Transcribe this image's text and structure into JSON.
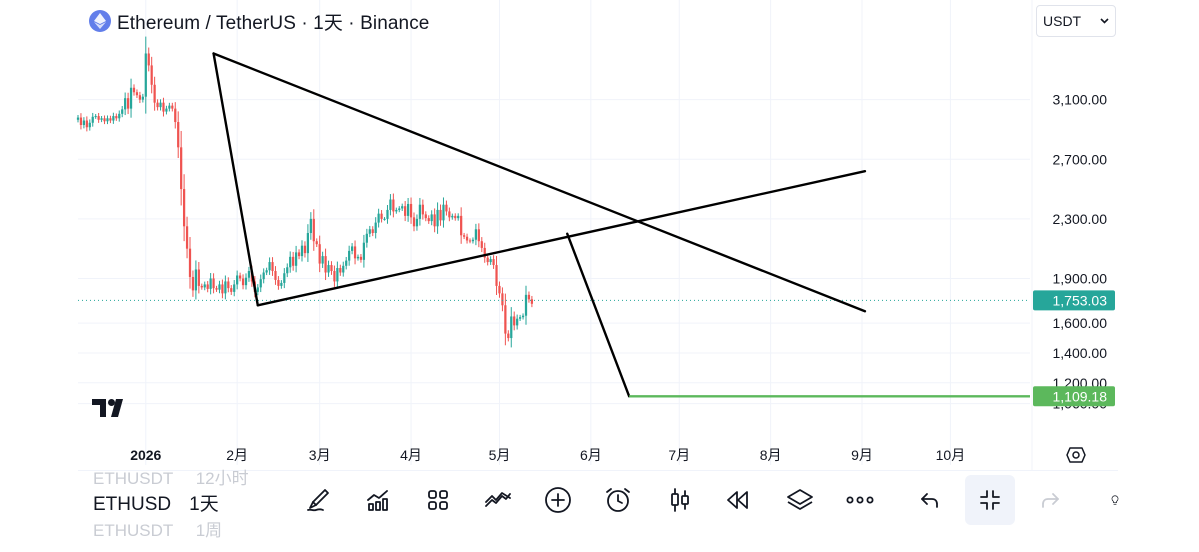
{
  "header": {
    "title": "Ethereum / TetherUS · 1天 · Binance",
    "coin_icon": "ethereum-icon",
    "currency": "USDT",
    "currency_chevron": "chevron-down-icon"
  },
  "symbol_switcher": {
    "prev_symbol": "ETHUSDT",
    "prev_interval": "12小时",
    "current_symbol": "ETHUSD",
    "current_interval": "1天",
    "next_symbol": "ETHUSDT",
    "next_interval": "1周"
  },
  "toolbar": [
    {
      "name": "draw-tool-button",
      "icon": "brush-icon"
    },
    {
      "name": "indicators-button",
      "icon": "indicators-icon"
    },
    {
      "name": "templates-button",
      "icon": "grid-icon"
    },
    {
      "name": "compare-button",
      "icon": "compare-icon"
    },
    {
      "name": "add-button",
      "icon": "plus-circle-icon"
    },
    {
      "name": "alert-button",
      "icon": "alarm-clock-icon"
    },
    {
      "name": "chart-type-button",
      "icon": "candles-icon"
    },
    {
      "name": "replay-button",
      "icon": "rewind-icon"
    },
    {
      "name": "layers-button",
      "icon": "layers-icon"
    },
    {
      "name": "more-button",
      "icon": "ellipsis-icon"
    },
    {
      "name": "undo-button",
      "icon": "undo-icon"
    },
    {
      "name": "collapse-button",
      "icon": "collapse-icon"
    },
    {
      "name": "redo-button",
      "icon": "redo-icon"
    },
    {
      "name": "ideas-button",
      "icon": "lightbulb-icon"
    }
  ],
  "chart_data": {
    "type": "candlestick",
    "x_type": "date",
    "ylim": [
      950,
      3420
    ],
    "y_ticks": [
      {
        "value": 3100,
        "label": "3,100.00"
      },
      {
        "value": 2700,
        "label": "2,700.00"
      },
      {
        "value": 2300,
        "label": "2,300.00"
      },
      {
        "value": 1900,
        "label": "1,900.00"
      },
      {
        "value": 1600,
        "label": "1,600.00"
      },
      {
        "value": 1400,
        "label": "1,400.00"
      },
      {
        "value": 1200,
        "label": "1,200.00"
      },
      {
        "value": 1060,
        "label": "1,060.00"
      }
    ],
    "x_ticks": [
      {
        "date": "2026-01-01",
        "label": "2026",
        "bold": true
      },
      {
        "date": "2026-02-01",
        "label": "2月"
      },
      {
        "date": "2026-03-01",
        "label": "3月"
      },
      {
        "date": "2026-04-01",
        "label": "4月"
      },
      {
        "date": "2026-05-01",
        "label": "5月"
      },
      {
        "date": "2026-06-01",
        "label": "6月"
      },
      {
        "date": "2026-07-01",
        "label": "7月"
      },
      {
        "date": "2026-08-01",
        "label": "8月"
      },
      {
        "date": "2026-09-01",
        "label": "9月"
      },
      {
        "date": "2026-10-01",
        "label": "10月"
      }
    ],
    "x_range": [
      "2025-12-09",
      "2026-10-28"
    ],
    "candle_start": "2025-12-09",
    "closes": [
      2980,
      2930,
      2960,
      2915,
      2945,
      2985,
      2990,
      2965,
      2975,
      2955,
      2975,
      2960,
      2990,
      2975,
      3005,
      3035,
      3110,
      3040,
      3180,
      3150,
      3130,
      3100,
      3120,
      3410,
      3330,
      3200,
      3080,
      3050,
      3080,
      3020,
      3040,
      3060,
      3040,
      2950,
      2780,
      2500,
      2250,
      2100,
      1910,
      1820,
      1960,
      1850,
      1840,
      1860,
      1830,
      1900,
      1835,
      1825,
      1860,
      1800,
      1880,
      1835,
      1810,
      1860,
      1920,
      1900,
      1855,
      1905,
      1950,
      1880,
      1810,
      1840,
      1895,
      1940,
      1955,
      2010,
      1950,
      1890,
      1850,
      1870,
      1935,
      1975,
      2045,
      1985,
      2075,
      2050,
      2120,
      2070,
      2205,
      2300,
      2150,
      2130,
      2000,
      2050,
      1940,
      1990,
      1950,
      1880,
      1970,
      1940,
      1985,
      2020,
      2085,
      2115,
      2035,
      2045,
      2025,
      2140,
      2200,
      2230,
      2205,
      2275,
      2335,
      2300,
      2300,
      2360,
      2430,
      2350,
      2360,
      2370,
      2385,
      2320,
      2400,
      2310,
      2250,
      2300,
      2395,
      2330,
      2305,
      2285,
      2330,
      2250,
      2360,
      2290,
      2395,
      2350,
      2310,
      2320,
      2305,
      2320,
      2190,
      2180,
      2155,
      2150,
      2160,
      2230,
      2150,
      2105,
      2040,
      2010,
      2030,
      1990,
      1850,
      1800,
      1720,
      1530,
      1500,
      1645,
      1585,
      1630,
      1640,
      1650,
      1790,
      1760,
      1730
    ],
    "candle_up_color": "#26a69a",
    "candle_down_color": "#ef5350",
    "last_price": {
      "value": 1753.03,
      "label": "1,753.03",
      "color": "#26a69a"
    },
    "target_price": {
      "value": 1109.18,
      "label": "1,109.18",
      "color": "#5cb85c"
    },
    "trendlines": [
      {
        "from": {
          "date": "2026-01-24",
          "price": 3410
        },
        "to": {
          "date": "2026-02-08",
          "price": 1720
        }
      },
      {
        "from": {
          "date": "2026-01-24",
          "price": 3410
        },
        "to": {
          "date": "2026-09-02",
          "price": 1680
        }
      },
      {
        "from": {
          "date": "2026-02-08",
          "price": 1720
        },
        "to": {
          "date": "2026-09-02",
          "price": 2620
        }
      },
      {
        "from": {
          "date": "2026-05-24",
          "price": 2200
        },
        "to": {
          "date": "2026-06-14",
          "price": 1109.18
        }
      }
    ],
    "target_line": {
      "from": "2026-06-14",
      "to": "2026-10-28",
      "price": 1109.18
    },
    "grid": true,
    "price_axis": "right",
    "settings_icon": "settings-icon",
    "logo": "tradingview-logo"
  }
}
